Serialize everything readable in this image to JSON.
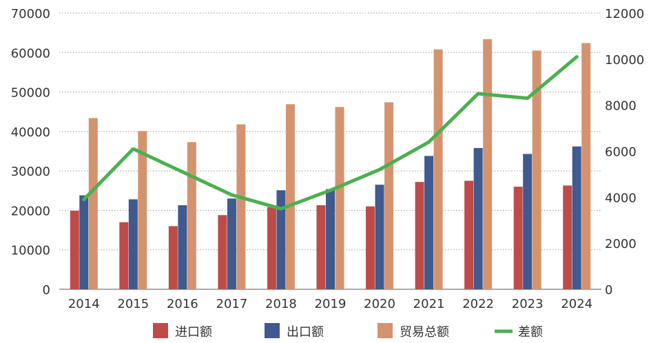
{
  "chart_data": {
    "type": "bar",
    "categories": [
      "2014",
      "2015",
      "2016",
      "2017",
      "2018",
      "2019",
      "2020",
      "2021",
      "2022",
      "2023",
      "2024"
    ],
    "series": [
      {
        "name": "进口额",
        "type": "bar",
        "axis": "left",
        "color": "#be4b48",
        "values": [
          19900,
          17000,
          16000,
          18800,
          20800,
          21300,
          21000,
          27200,
          27500,
          26000,
          26300
        ]
      },
      {
        "name": "出口额",
        "type": "bar",
        "axis": "left",
        "color": "#3e5a8f",
        "values": [
          23800,
          22800,
          21300,
          23000,
          25100,
          25400,
          26500,
          33800,
          35800,
          34300,
          36200
        ]
      },
      {
        "name": "贸易总额",
        "type": "bar",
        "axis": "left",
        "color": "#d4936f",
        "values": [
          43400,
          40100,
          37300,
          41800,
          46900,
          46200,
          47400,
          60800,
          63400,
          60500,
          62400
        ]
      },
      {
        "name": "差额",
        "type": "line",
        "axis": "right",
        "color": "#4caf50",
        "values": [
          3900,
          6100,
          5100,
          4100,
          3500,
          4300,
          5200,
          6400,
          8500,
          8300,
          10100
        ]
      }
    ],
    "y_left": {
      "min": 0,
      "max": 70000,
      "ticks": [
        "0",
        "10000",
        "20000",
        "30000",
        "40000",
        "50000",
        "60000",
        "70000"
      ]
    },
    "y_right": {
      "min": 0,
      "max": 12000,
      "ticks": [
        "0",
        "2000",
        "4000",
        "6000",
        "8000",
        "10000",
        "12000"
      ]
    },
    "grid": "horizontal-dotted",
    "legend_position": "bottom"
  }
}
